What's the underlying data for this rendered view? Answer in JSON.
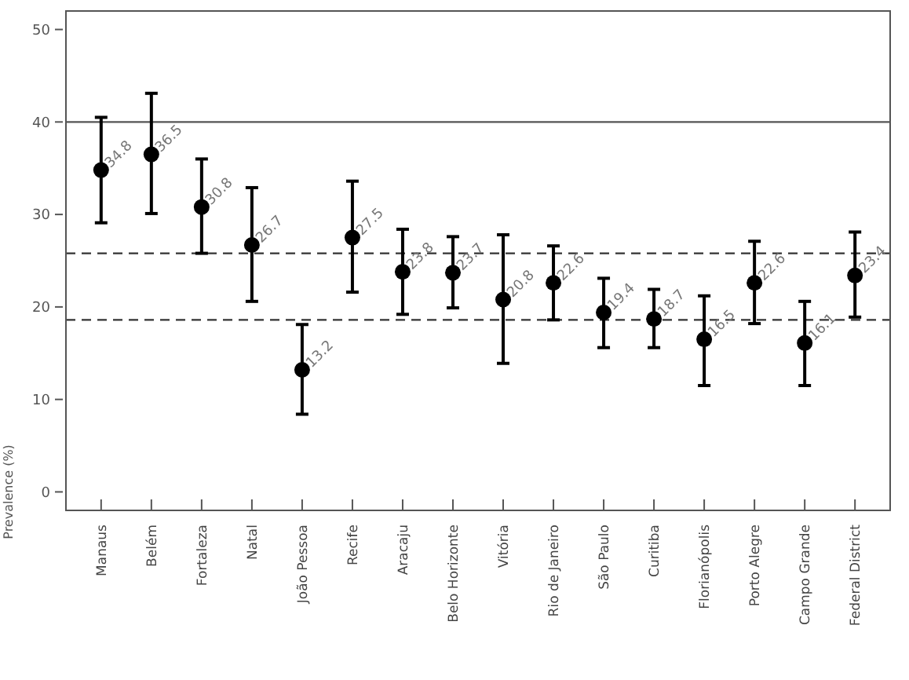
{
  "chart_data": {
    "type": "scatter",
    "ylabel": "Prevalence (%)",
    "categories": [
      "Manaus",
      "Belém",
      "Fortaleza",
      "Natal",
      "João Pessoa",
      "Recife",
      "Aracaju",
      "Belo Horizonte",
      "Vitória",
      "Rio de Janeiro",
      "São Paulo",
      "Curitiba",
      "Florianópolis",
      "Porto Alegre",
      "Campo Grande",
      "Federal District"
    ],
    "values": [
      34.8,
      36.5,
      30.8,
      26.7,
      13.2,
      27.5,
      23.8,
      23.7,
      20.8,
      22.6,
      19.4,
      18.7,
      16.5,
      22.6,
      16.1,
      23.4
    ],
    "errors": [
      [
        29.1,
        40.5
      ],
      [
        30.1,
        43.1
      ],
      [
        25.8,
        36.0
      ],
      [
        20.6,
        32.9
      ],
      [
        8.4,
        18.1
      ],
      [
        21.6,
        33.6
      ],
      [
        19.2,
        28.4
      ],
      [
        19.9,
        27.6
      ],
      [
        13.9,
        27.8
      ],
      [
        18.6,
        26.6
      ],
      [
        15.6,
        23.1
      ],
      [
        15.6,
        21.9
      ],
      [
        11.5,
        21.2
      ],
      [
        18.2,
        27.1
      ],
      [
        11.5,
        20.6
      ],
      [
        18.9,
        28.1
      ]
    ],
    "color": "#000000",
    "marker": "circle",
    "data_labels": true,
    "ylim": [
      -2,
      52
    ],
    "yticks": [
      0,
      10,
      20,
      30,
      40,
      50
    ],
    "grid": false,
    "ref_lines": [
      {
        "axis": "y",
        "value": 40,
        "line_style": "solid",
        "color": "#555555"
      },
      {
        "axis": "y",
        "value": 25.8,
        "line_style": "dashed",
        "color": "#333333"
      },
      {
        "axis": "y",
        "value": 18.6,
        "line_style": "dashed",
        "color": "#333333"
      }
    ]
  }
}
